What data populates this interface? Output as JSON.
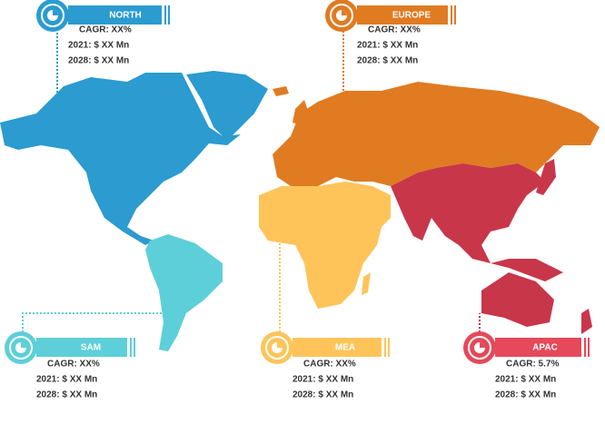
{
  "regions": [
    {
      "name": "NORTH",
      "cagr": "CAGR: XX%",
      "y2021": "2021: $ XX Mn",
      "y2028": "2028: $ XX Mn"
    },
    {
      "name": "EUROPE",
      "cagr": "CAGR: XX%",
      "y2021": "2021: $ XX Mn",
      "y2028": "2028: $ XX Mn"
    },
    {
      "name": "SAM",
      "cagr": "CAGR: XX%",
      "y2021": "2021: $ XX Mn",
      "y2028": "2028: $ XX Mn"
    },
    {
      "name": "MEA",
      "cagr": "CAGR: XX%",
      "y2021": "2021: $ XX Mn",
      "y2028": "2028: $ XX Mn"
    },
    {
      "name": "APAC",
      "cagr": "CAGR: 5.7%",
      "y2021": "2021: $ XX Mn",
      "y2028": "2028: $ XX Mn"
    }
  ]
}
